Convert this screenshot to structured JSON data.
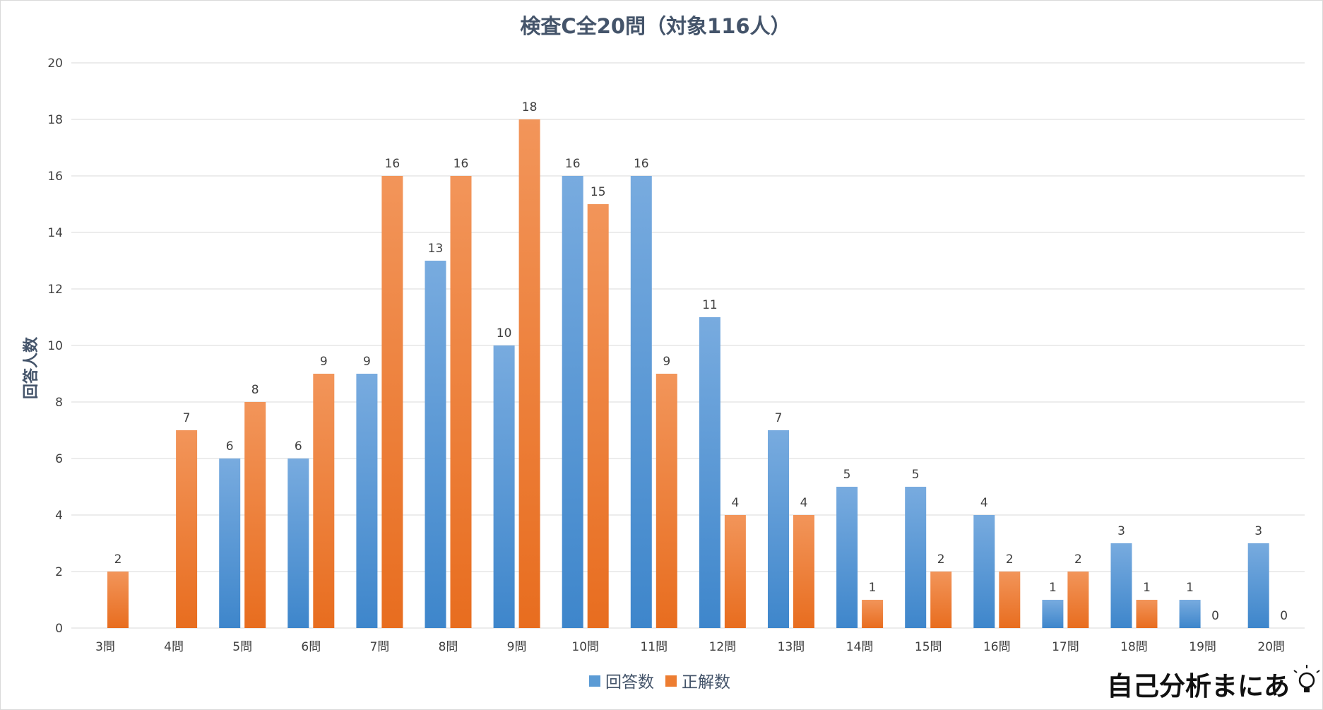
{
  "chart_data": {
    "type": "bar",
    "title": "検査C全20問（対象116人）",
    "ylabel": "回答人数",
    "xlabel": "",
    "ylim": [
      0,
      20
    ],
    "yticks": [
      0,
      2,
      4,
      6,
      8,
      10,
      12,
      14,
      16,
      18,
      20
    ],
    "grid": true,
    "legend_position": "bottom",
    "categories": [
      "3問",
      "4問",
      "5問",
      "6問",
      "7問",
      "8問",
      "9問",
      "10問",
      "11問",
      "12問",
      "13問",
      "14問",
      "15問",
      "16問",
      "17問",
      "18問",
      "19問",
      "20問"
    ],
    "series": [
      {
        "name": "回答数",
        "color": "#5b9bd5",
        "values": [
          null,
          null,
          6,
          6,
          9,
          13,
          10,
          16,
          16,
          11,
          7,
          5,
          5,
          4,
          1,
          3,
          1,
          3
        ]
      },
      {
        "name": "正解数",
        "color": "#ed7d31",
        "values": [
          2,
          7,
          8,
          9,
          16,
          16,
          18,
          15,
          9,
          4,
          4,
          1,
          2,
          2,
          2,
          1,
          0,
          0
        ]
      }
    ]
  },
  "watermark": {
    "text": "自己分析まにあ"
  }
}
